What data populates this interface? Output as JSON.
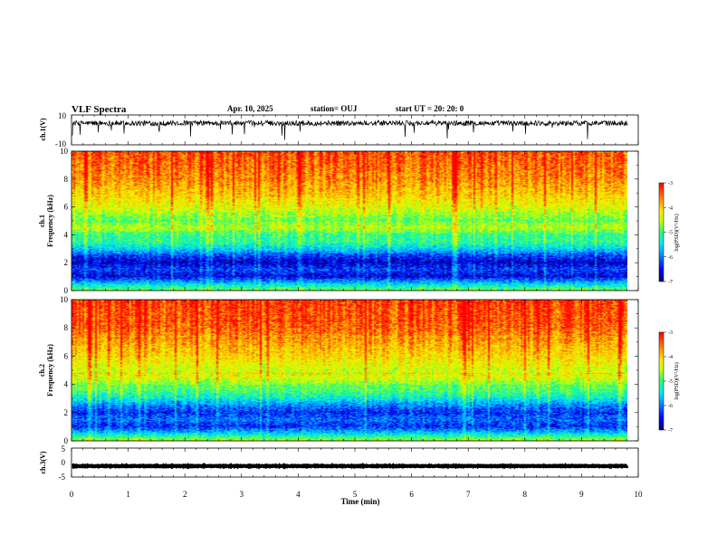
{
  "header": {
    "title": "VLF Spectra",
    "date": "Apr. 10, 2025",
    "station": "station= OUJ",
    "start": "start  UT =   20: 20: 0"
  },
  "colors": {
    "trace": "#000000",
    "colormap": [
      "#08006e",
      "#0000ff",
      "#0090ff",
      "#00e8ff",
      "#28ff70",
      "#ccff00",
      "#ffe800",
      "#ff8000",
      "#ff0000"
    ]
  },
  "chart_data": [
    {
      "type": "line",
      "id": "ch1-waveform",
      "ylabel": "ch.1(V)",
      "ylim": [
        -10,
        10
      ],
      "yticks": [
        "10",
        "-10"
      ],
      "xlim": [
        0,
        10
      ],
      "baseline": 4.5,
      "spread": 3.5
    },
    {
      "type": "heatmap",
      "id": "ch1-spectrogram",
      "ylabel": [
        "ch.1",
        "Frequency (kHz)"
      ],
      "ylim": [
        0,
        10
      ],
      "yticks": [
        "0",
        "2",
        "4",
        "6",
        "8",
        "10"
      ],
      "xlim": [
        0,
        9.8
      ],
      "color_range": [
        -7,
        -3
      ],
      "colorbar_label": "log(PSD)(V²/Hz)",
      "colorbar_ticks": [
        "-3",
        "-4",
        "-5",
        "-6",
        "-7"
      ],
      "freq_profile_khz": [
        0,
        0.6,
        1.0,
        1.5,
        2.0,
        2.5,
        3.0,
        3.5,
        4.0,
        4.5,
        5.0,
        6.0,
        7.0,
        8.0,
        10.0
      ],
      "freq_profile_log_psd": [
        -4.8,
        -5.9,
        -6.6,
        -6.3,
        -6.7,
        -6.3,
        -5.6,
        -5.1,
        -5.1,
        -4.5,
        -4.9,
        -4.3,
        -3.9,
        -3.6,
        -3.3
      ]
    },
    {
      "type": "heatmap",
      "id": "ch2-spectrogram",
      "ylabel": [
        "ch.2",
        "Frequency (kHz)"
      ],
      "ylim": [
        0,
        10
      ],
      "yticks": [
        "0",
        "2",
        "4",
        "6",
        "8",
        "10"
      ],
      "xlim": [
        0,
        9.8
      ],
      "color_range": [
        -7,
        -3
      ],
      "colorbar_label": "log(PSD)(V²/Hz)",
      "colorbar_ticks": [
        "-3",
        "-4",
        "-5",
        "-6",
        "-7"
      ],
      "freq_profile_khz": [
        0,
        0.6,
        1.0,
        1.5,
        2.0,
        2.5,
        3.0,
        3.5,
        4.0,
        4.5,
        5.0,
        6.0,
        7.0,
        8.0,
        10.0
      ],
      "freq_profile_log_psd": [
        -4.6,
        -5.8,
        -6.4,
        -6.1,
        -6.4,
        -6.0,
        -5.4,
        -5.0,
        -4.8,
        -4.3,
        -4.4,
        -4.0,
        -3.7,
        -3.4,
        -3.2
      ]
    },
    {
      "type": "line",
      "id": "ch3-waveform",
      "ylabel": "ch.3(V)",
      "ylim": [
        -5,
        5
      ],
      "yticks": [
        "5",
        "0",
        "-5"
      ],
      "xlim": [
        0,
        10
      ],
      "baseline": -1.2,
      "spread": 0.25
    }
  ],
  "xaxis": {
    "label": "Time (min)",
    "range": [
      0,
      10
    ],
    "ticks": [
      "0",
      "1",
      "2",
      "3",
      "4",
      "5",
      "6",
      "7",
      "8",
      "9",
      "10"
    ]
  }
}
